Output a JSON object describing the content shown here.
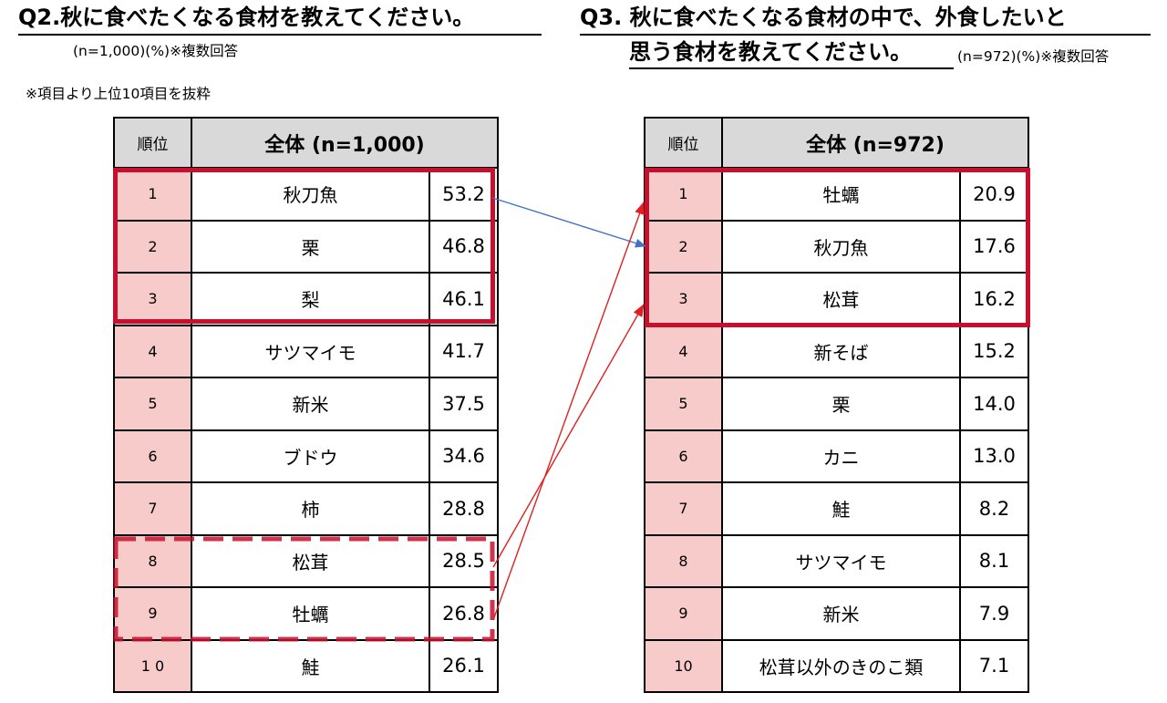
{
  "left": {
    "title": "Q2.秋に食べたくなる食材を教えてください。",
    "sample": "(n=1,000)(%)※複数回答",
    "note": "※項目より上位10項目を抜粋",
    "col_rank": "順位",
    "col_total": "全体 (n=1,000)"
  },
  "right": {
    "title_line1": "Q3. 秋に食べたくなる食材の中で、外食したいと",
    "title_line2": "思う食材を教えてください。",
    "sample": "(n=972)(%)※複数回答",
    "col_rank": "順位",
    "col_total": "全体 (n=972)"
  },
  "colors": {
    "highlight": "#c8102e",
    "rank_bg": "#f8cbcb",
    "header_bg": "#d9d9d9",
    "link_arrow": "#4472c4",
    "cross_arrow": "#e02020"
  },
  "chart_data": [
    {
      "type": "table",
      "columns": [
        "順位",
        "全体 (n=1,000)",
        ""
      ],
      "rows": [
        {
          "rank": "1",
          "item": "秋刀魚",
          "value": "53.2"
        },
        {
          "rank": "2",
          "item": "栗",
          "value": "46.8"
        },
        {
          "rank": "3",
          "item": "梨",
          "value": "46.1"
        },
        {
          "rank": "4",
          "item": "サツマイモ",
          "value": "41.7"
        },
        {
          "rank": "5",
          "item": "新米",
          "value": "37.5"
        },
        {
          "rank": "6",
          "item": "ブドウ",
          "value": "34.6"
        },
        {
          "rank": "7",
          "item": "柿",
          "value": "28.8"
        },
        {
          "rank": "8",
          "item": "松茸",
          "value": "28.5"
        },
        {
          "rank": "9",
          "item": "牡蠣",
          "value": "26.8"
        },
        {
          "rank": "1 0",
          "item": "鮭",
          "value": "26.1"
        }
      ]
    },
    {
      "type": "table",
      "columns": [
        "順位",
        "全体 (n=972)",
        ""
      ],
      "rows": [
        {
          "rank": "1",
          "item": "牡蠣",
          "value": "20.9"
        },
        {
          "rank": "2",
          "item": "秋刀魚",
          "value": "17.6"
        },
        {
          "rank": "3",
          "item": "松茸",
          "value": "16.2"
        },
        {
          "rank": "4",
          "item": "新そば",
          "value": "15.2"
        },
        {
          "rank": "5",
          "item": "栗",
          "value": "14.0"
        },
        {
          "rank": "6",
          "item": "カニ",
          "value": "13.0"
        },
        {
          "rank": "7",
          "item": "鮭",
          "value": "8.2"
        },
        {
          "rank": "8",
          "item": "サツマイモ",
          "value": "8.1"
        },
        {
          "rank": "9",
          "item": "新米",
          "value": "7.9"
        },
        {
          "rank": "10",
          "item": "松茸以外のきのこ類",
          "value": "7.1"
        }
      ]
    }
  ]
}
